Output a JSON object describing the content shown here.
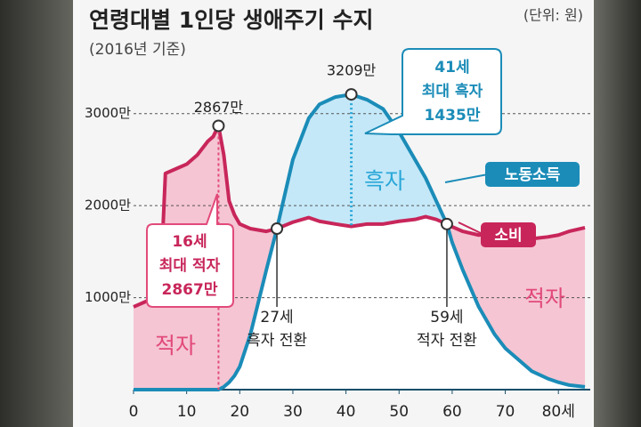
{
  "chart_data": {
    "type": "line",
    "title": "연령대별 1인당 생애주기 수지",
    "subtitle": "(2016년 기준)",
    "unit_note": "(단위: 원)",
    "x": [
      0,
      2,
      4,
      5,
      6,
      8,
      10,
      12,
      14,
      15,
      16,
      17,
      18,
      19,
      20,
      22,
      25,
      27,
      30,
      33,
      35,
      38,
      41,
      44,
      47,
      50,
      53,
      55,
      57,
      59,
      60,
      62,
      65,
      68,
      70,
      73,
      75,
      78,
      80,
      82,
      85
    ],
    "xlim": [
      0,
      86
    ],
    "ylim": [
      0,
      3500
    ],
    "xticks": [
      0,
      10,
      20,
      30,
      40,
      50,
      60,
      70,
      {
        "value": 80,
        "label": "80세"
      }
    ],
    "yticks": [
      {
        "value": 1000,
        "label": "1000만"
      },
      {
        "value": 2000,
        "label": "2000만"
      },
      {
        "value": 3000,
        "label": "3000만"
      }
    ],
    "grid": true,
    "series": [
      {
        "name": "노동소득",
        "color": "#1b8cb8",
        "fill": "#c4e8f8",
        "values": [
          0,
          0,
          0,
          0,
          0,
          0,
          0,
          0,
          0,
          0,
          0,
          30,
          80,
          150,
          250,
          600,
          1300,
          1750,
          2500,
          2950,
          3100,
          3180,
          3209,
          3150,
          3050,
          2800,
          2500,
          2300,
          2050,
          1800,
          1600,
          1300,
          900,
          600,
          450,
          300,
          200,
          120,
          80,
          50,
          30
        ]
      },
      {
        "name": "소비",
        "color": "#c8265a",
        "fill": "#f5c5d3",
        "values": [
          900,
          950,
          1000,
          1050,
          2350,
          2400,
          2450,
          2550,
          2700,
          2750,
          2867,
          2550,
          2050,
          1900,
          1800,
          1750,
          1720,
          1750,
          1820,
          1870,
          1830,
          1800,
          1774,
          1800,
          1800,
          1830,
          1850,
          1880,
          1850,
          1800,
          1770,
          1720,
          1680,
          1700,
          1670,
          1660,
          1640,
          1660,
          1680,
          1720,
          1760
        ]
      }
    ],
    "annotations": {
      "peak_deficit": "2867만",
      "peak_surplus": "3209만",
      "deficit_callout": [
        "16세",
        "최대 적자",
        "2867만"
      ],
      "surplus_callout": [
        "41세",
        "최대 흑자",
        "1435만"
      ],
      "surplus_turn": [
        "27세",
        "흑자 전환"
      ],
      "deficit_turn": [
        "59세",
        "적자 전환"
      ],
      "surplus_area": "흑자",
      "deficit_areas": [
        "적자",
        "적자"
      ]
    }
  }
}
